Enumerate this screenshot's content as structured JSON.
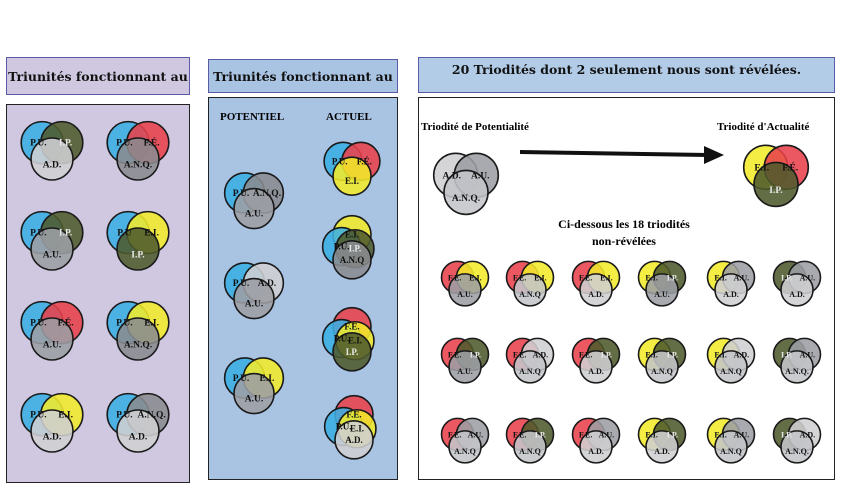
{
  "colors": {
    "PU": "#3aaee2",
    "IP": "#4f5a2c",
    "AD": "#cfcfd1",
    "FE": "#e8414b",
    "ANQ": "#8a8b90",
    "AU": "#9c9ea4",
    "EI": "#f2ea2a",
    "ANQ_light": "#c4c5c9",
    "FE_dark": "#cc4044"
  },
  "headers": {
    "left": "Triunités fonctionnant au",
    "middle": "Triunités fonctionnant au",
    "right": "20 Triodités dont 2 seulement nous sont révélées."
  },
  "middle": {
    "potentiel": "POTENTIEL",
    "actuel": "ACTUEL"
  },
  "right": {
    "potentialite_title": "Triodité de Potentialité",
    "actualite_title": "Triodité d'Actualité",
    "nonrevealed_line1": "Ci-dessous les 18 triodités",
    "nonrevealed_line2": "non-révélées"
  },
  "left_groups": [
    [
      "P.U.",
      "I.P.",
      "A.D."
    ],
    [
      "P.U.",
      "F.É.",
      "A.N.Q."
    ],
    [
      "P.U.",
      "I.P.",
      "A.U."
    ],
    [
      "P.U",
      "E.I.",
      "I.P."
    ],
    [
      "P.U.",
      "F.É.",
      "A.U."
    ],
    [
      "P.U.",
      "E.I.",
      "A.N.Q."
    ],
    [
      "P.U.",
      "E.I.",
      "A.D."
    ],
    [
      "P.U.",
      "A.N.Q.",
      "A.D."
    ]
  ],
  "potentiel_groups": [
    [
      "P.U.",
      "A.N.Q.",
      "A.U."
    ],
    [
      "P.U.",
      "A.D.",
      "A.U."
    ],
    [
      "P.U.",
      "E.I.",
      "A.U."
    ]
  ],
  "actuel_groups": [
    [
      "P.U.",
      "F.É.",
      "E.I."
    ],
    [
      "E.I.",
      "P.U.",
      "I.P.",
      "A.N.Q"
    ],
    [
      "F.É.",
      "P.U.",
      "E.I.",
      "I.P."
    ],
    [
      "F.É.",
      "P.U.",
      "E.I.",
      "A.D."
    ]
  ],
  "potentialite_group": [
    "A.D.",
    "A.U.",
    "A.N.Q."
  ],
  "actualite_group": [
    "E.I.",
    "F.É.",
    "I.P."
  ],
  "nonrevealed_groups": [
    [
      "F.É.",
      "E.I.",
      "A.U."
    ],
    [
      "F.É.",
      "E.I.",
      "A.N.Q"
    ],
    [
      "F.É.",
      "E.I.",
      "A.D."
    ],
    [
      "E.I.",
      "I.P.",
      "A.U."
    ],
    [
      "E.I.",
      "A.U.",
      "A.D."
    ],
    [
      "I.P.",
      "A.U.",
      "A.D."
    ],
    [
      "F.É.",
      "I.P.",
      "A.U."
    ],
    [
      "F.É.",
      "A.D.",
      "A.N.Q"
    ],
    [
      "F.É.",
      "I.P.",
      "A.D."
    ],
    [
      "E.I.",
      "I.P.",
      "A.N.Q"
    ],
    [
      "E.I.",
      "A.D.",
      "A.N.Q"
    ],
    [
      "I.P.",
      "A.U.",
      "A.N.Q."
    ],
    [
      "F.É.",
      "A.U.",
      "A.N.Q"
    ],
    [
      "F.É.",
      "I.P.",
      "A.N.Q"
    ],
    [
      "F.É.",
      "A.U.",
      "A.D."
    ],
    [
      "E.I.",
      "I.P.",
      "A.D."
    ],
    [
      "E.I.",
      "A.U.",
      "A.N.Q"
    ],
    [
      "I.P.",
      "A.D.",
      "A.N.Q."
    ]
  ]
}
